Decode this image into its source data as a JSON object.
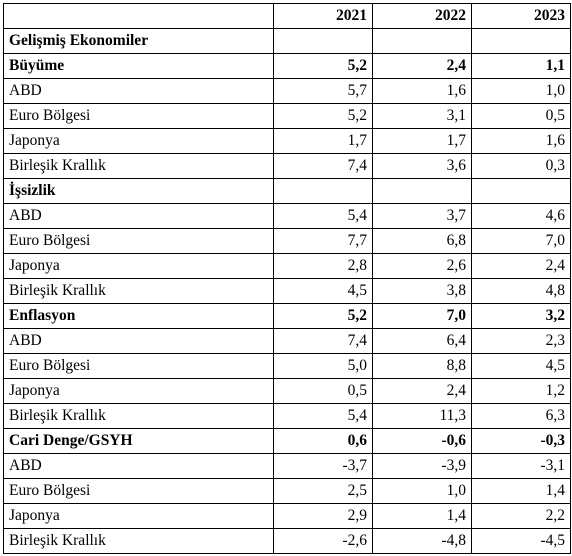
{
  "table": {
    "header": {
      "label": "",
      "years": [
        "2021",
        "2022",
        "2023"
      ]
    },
    "title": "Gelişmiş Ekonomiler",
    "sections": [
      {
        "label": "Büyüme",
        "total": [
          "5,2",
          "2,4",
          "1,1"
        ],
        "rows": [
          {
            "label": "ABD",
            "values": [
              "5,7",
              "1,6",
              "1,0"
            ]
          },
          {
            "label": "Euro Bölgesi",
            "values": [
              "5,2",
              "3,1",
              "0,5"
            ]
          },
          {
            "label": "Japonya",
            "values": [
              "1,7",
              "1,7",
              "1,6"
            ]
          },
          {
            "label": "Birleşik Krallık",
            "values": [
              "7,4",
              "3,6",
              "0,3"
            ]
          }
        ]
      },
      {
        "label": "İşsizlik",
        "total": [
          "",
          "",
          ""
        ],
        "rows": [
          {
            "label": "ABD",
            "values": [
              "5,4",
              "3,7",
              "4,6"
            ]
          },
          {
            "label": "Euro Bölgesi",
            "values": [
              "7,7",
              "6,8",
              "7,0"
            ]
          },
          {
            "label": "Japonya",
            "values": [
              "2,8",
              "2,6",
              "2,4"
            ]
          },
          {
            "label": "Birleşik Krallık",
            "values": [
              "4,5",
              "3,8",
              "4,8"
            ]
          }
        ]
      },
      {
        "label": "Enflasyon",
        "total": [
          "5,2",
          "7,0",
          "3,2"
        ],
        "rows": [
          {
            "label": "ABD",
            "values": [
              "7,4",
              "6,4",
              "2,3"
            ]
          },
          {
            "label": "Euro Bölgesi",
            "values": [
              "5,0",
              "8,8",
              "4,5"
            ]
          },
          {
            "label": "Japonya",
            "values": [
              "0,5",
              "2,4",
              "1,2"
            ]
          },
          {
            "label": "Birleşik Krallık",
            "values": [
              "5,4",
              "11,3",
              "6,3"
            ]
          }
        ]
      },
      {
        "label": "Cari Denge/GSYH",
        "total": [
          "0,6",
          "-0,6",
          "-0,3"
        ],
        "rows": [
          {
            "label": "ABD",
            "values": [
              "-3,7",
              "-3,9",
              "-3,1"
            ]
          },
          {
            "label": "Euro Bölgesi",
            "values": [
              "2,5",
              "1,0",
              "1,4"
            ]
          },
          {
            "label": "Japonya",
            "values": [
              "2,9",
              "1,4",
              "2,2"
            ]
          },
          {
            "label": "Birleşik Krallık",
            "values": [
              "-2,6",
              "-4,8",
              "-4,5"
            ]
          }
        ]
      }
    ]
  }
}
